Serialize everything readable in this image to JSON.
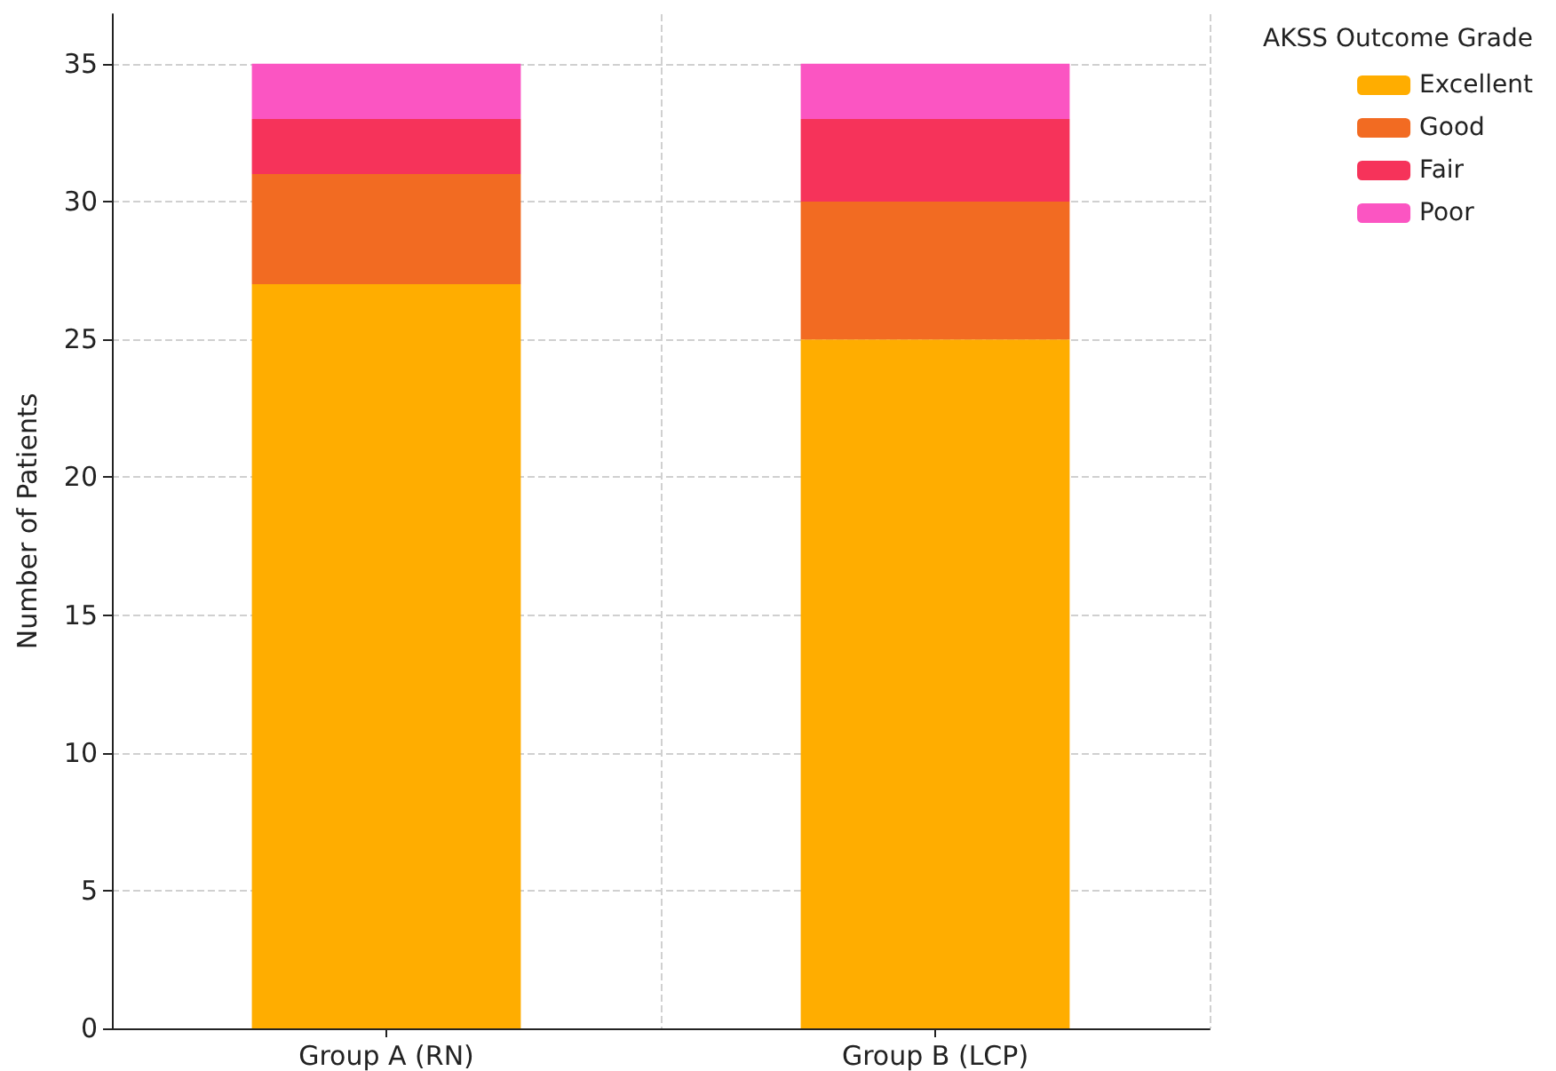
{
  "chart_data": {
    "type": "bar",
    "stacked": true,
    "ylabel": "Number of Patients",
    "legend_title": "AKSS Outcome Grade",
    "categories": [
      "Group A (RN)",
      "Group B (LCP)"
    ],
    "series": [
      {
        "name": "Excellent",
        "color": "#ffad00",
        "values": [
          27,
          25
        ]
      },
      {
        "name": "Good",
        "color": "#f26b22",
        "values": [
          4,
          5
        ]
      },
      {
        "name": "Fair",
        "color": "#f6335a",
        "values": [
          2,
          3
        ]
      },
      {
        "name": "Poor",
        "color": "#fb55c2",
        "values": [
          2,
          2
        ]
      }
    ],
    "ylim": [
      0,
      36.8
    ],
    "yticks": [
      0,
      5,
      10,
      15,
      20,
      25,
      30,
      35
    ],
    "grid": true,
    "legend": "top right"
  }
}
